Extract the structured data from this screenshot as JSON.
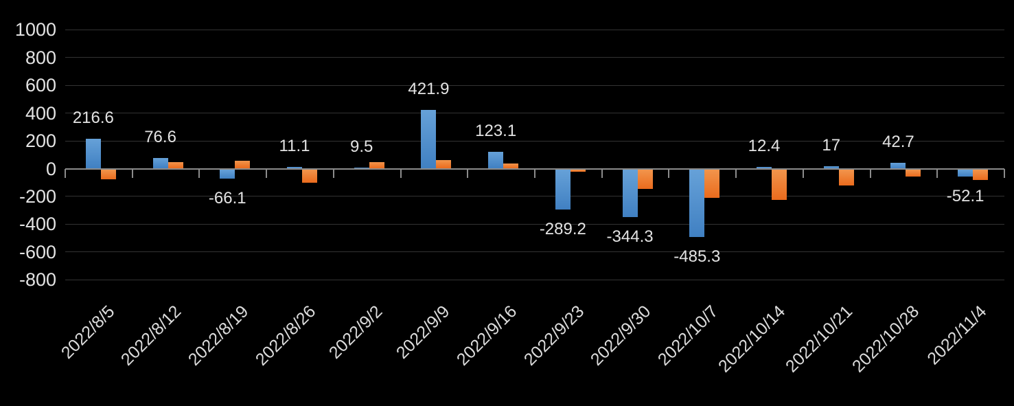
{
  "chart_data": {
    "type": "bar",
    "title": "",
    "legend_position": "none",
    "grid": true,
    "background_color": "#000000",
    "text_color": "#E3E3E3",
    "categories": [
      "2022/8/5",
      "2022/8/12",
      "2022/8/19",
      "2022/8/26",
      "2022/9/2",
      "2022/9/9",
      "2022/9/16",
      "2022/9/23",
      "2022/9/30",
      "2022/10/7",
      "2022/10/14",
      "2022/10/21",
      "2022/10/28",
      "2022/11/4"
    ],
    "series": [
      {
        "name": "blue-series",
        "color": "#4F8FCE",
        "color_top": "#66A1D8",
        "color_bottom": "#4080C2",
        "values": [
          216.6,
          76.6,
          -66.1,
          11.1,
          9.5,
          421.9,
          123.1,
          -289.2,
          -344.3,
          -485.3,
          12.4,
          17,
          42.7,
          -52.1
        ],
        "data_labels": [
          "216.6",
          "76.6",
          "-66.1",
          "11.1",
          "9.5",
          "421.9",
          "123.1",
          "-289.2",
          "-344.3",
          "-485.3",
          "12.4",
          "17",
          "42.7",
          "-52.1"
        ]
      },
      {
        "name": "orange-series",
        "color": "#ED7D31",
        "color_top": "#F2954C",
        "color_bottom": "#EA6B1D",
        "values": [
          -70,
          45,
          55,
          -95,
          45,
          60,
          35,
          -15,
          -140,
          -205,
          -220,
          -115,
          -50,
          -75
        ],
        "data_labels": null
      }
    ],
    "xlabel": "",
    "ylabel": "",
    "y_axis": {
      "min": -800,
      "max": 1000,
      "step": 200,
      "tick_labels": [
        "1000",
        "800",
        "600",
        "400",
        "200",
        "0",
        "-200",
        "-400",
        "-600",
        "-800"
      ]
    }
  }
}
